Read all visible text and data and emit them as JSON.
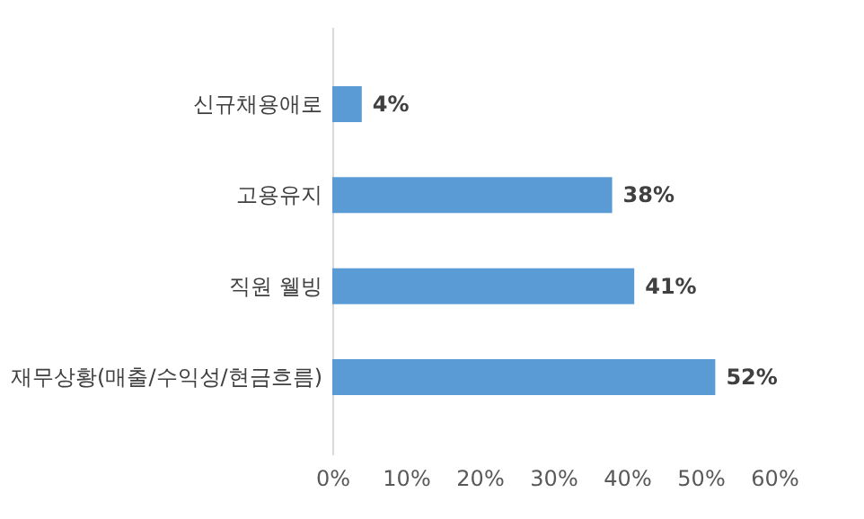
{
  "chart_data": {
    "type": "bar",
    "orientation": "horizontal",
    "categories": [
      "신규채용애로",
      "고용유지",
      "직원 웰빙",
      "재무상황(매출/수익성/현금흐름)"
    ],
    "values": [
      4,
      38,
      41,
      52
    ],
    "color": "#5b9bd5",
    "value_labels": [
      "4%",
      "38%",
      "41%",
      "52%"
    ],
    "xlim": [
      0,
      60
    ],
    "xticks": [
      {
        "value": 0,
        "label": "0%"
      },
      {
        "value": 10,
        "label": "10%"
      },
      {
        "value": 20,
        "label": "20%"
      },
      {
        "value": 30,
        "label": "30%"
      },
      {
        "value": 40,
        "label": "40%"
      },
      {
        "value": 50,
        "label": "50%"
      },
      {
        "value": 60,
        "label": "60%"
      }
    ],
    "grid": false
  }
}
